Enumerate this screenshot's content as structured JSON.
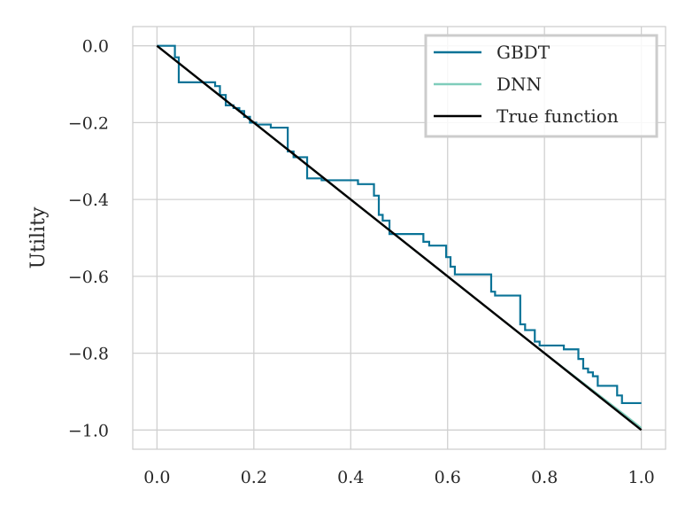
{
  "chart_data": {
    "type": "line",
    "title": "",
    "xlabel": "",
    "ylabel": "Utility",
    "xlim": [
      -0.05,
      1.05
    ],
    "ylim": [
      -1.05,
      0.05
    ],
    "xticks": [
      0.0,
      0.2,
      0.4,
      0.6,
      0.8,
      1.0
    ],
    "xtick_labels": [
      "0.0",
      "0.2",
      "0.4",
      "0.6",
      "0.8",
      "1.0"
    ],
    "yticks": [
      0.0,
      -0.2,
      -0.4,
      -0.6,
      -0.8,
      -1.0
    ],
    "ytick_labels": [
      "0.0",
      "−0.2",
      "−0.4",
      "−0.6",
      "−0.8",
      "−1.0"
    ],
    "grid": true,
    "legend_position": "top-right",
    "series": [
      {
        "name": "GBDT",
        "color": "#0a7397",
        "style": "step",
        "x": [
          0.0,
          0.037,
          0.037,
          0.045,
          0.045,
          0.065,
          0.065,
          0.12,
          0.12,
          0.13,
          0.13,
          0.142,
          0.142,
          0.158,
          0.158,
          0.17,
          0.17,
          0.18,
          0.18,
          0.192,
          0.192,
          0.205,
          0.205,
          0.235,
          0.235,
          0.27,
          0.27,
          0.282,
          0.282,
          0.31,
          0.31,
          0.34,
          0.34,
          0.37,
          0.37,
          0.415,
          0.415,
          0.448,
          0.448,
          0.458,
          0.458,
          0.466,
          0.466,
          0.48,
          0.48,
          0.495,
          0.495,
          0.55,
          0.55,
          0.562,
          0.562,
          0.597,
          0.597,
          0.606,
          0.606,
          0.615,
          0.615,
          0.63,
          0.63,
          0.69,
          0.69,
          0.698,
          0.698,
          0.75,
          0.75,
          0.76,
          0.76,
          0.78,
          0.78,
          0.79,
          0.79,
          0.84,
          0.84,
          0.87,
          0.87,
          0.88,
          0.88,
          0.89,
          0.89,
          0.9,
          0.9,
          0.91,
          0.91,
          0.95,
          0.95,
          0.96,
          0.96,
          0.98,
          0.98,
          1.0
        ],
        "y": [
          0.0,
          0.0,
          -0.03,
          -0.03,
          -0.095,
          -0.095,
          -0.095,
          -0.095,
          -0.105,
          -0.105,
          -0.128,
          -0.128,
          -0.155,
          -0.155,
          -0.162,
          -0.162,
          -0.17,
          -0.17,
          -0.185,
          -0.185,
          -0.2,
          -0.2,
          -0.205,
          -0.205,
          -0.213,
          -0.213,
          -0.275,
          -0.275,
          -0.29,
          -0.29,
          -0.345,
          -0.345,
          -0.35,
          -0.35,
          -0.35,
          -0.35,
          -0.36,
          -0.36,
          -0.39,
          -0.39,
          -0.44,
          -0.44,
          -0.455,
          -0.455,
          -0.49,
          -0.49,
          -0.49,
          -0.49,
          -0.51,
          -0.51,
          -0.52,
          -0.52,
          -0.55,
          -0.55,
          -0.575,
          -0.575,
          -0.595,
          -0.595,
          -0.595,
          -0.595,
          -0.64,
          -0.64,
          -0.65,
          -0.65,
          -0.725,
          -0.725,
          -0.74,
          -0.74,
          -0.77,
          -0.77,
          -0.78,
          -0.78,
          -0.79,
          -0.79,
          -0.815,
          -0.815,
          -0.84,
          -0.84,
          -0.85,
          -0.85,
          -0.86,
          -0.86,
          -0.885,
          -0.885,
          -0.91,
          -0.91,
          -0.93,
          -0.93,
          -0.93,
          -0.93
        ]
      },
      {
        "name": "DNN",
        "color": "#7fcdbb",
        "style": "line",
        "x": [
          0.0,
          0.2,
          0.4,
          0.6,
          0.8,
          0.97,
          1.0
        ],
        "y": [
          0.0,
          -0.2,
          -0.4,
          -0.6,
          -0.8,
          -0.965,
          -0.995
        ]
      },
      {
        "name": "True function",
        "color": "#000000",
        "style": "line",
        "x": [
          0.0,
          1.0
        ],
        "y": [
          0.0,
          -1.0
        ]
      }
    ]
  }
}
